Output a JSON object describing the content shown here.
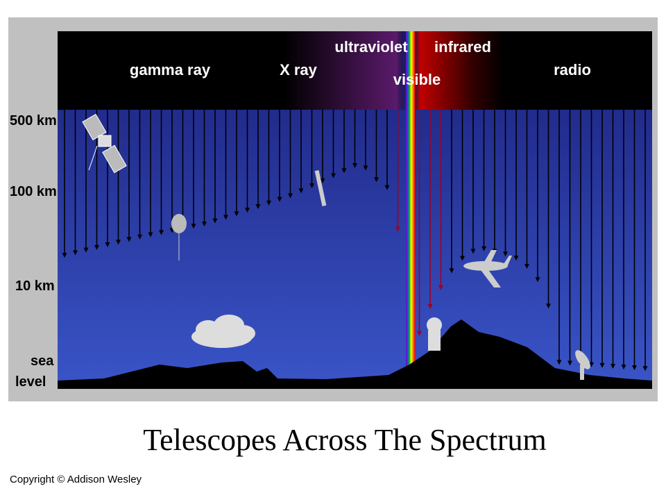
{
  "bands": [
    "gamma ray",
    "X ray",
    "ultraviolet",
    "visible",
    "infrared",
    "radio"
  ],
  "altitudes": [
    "500 km",
    "100 km",
    "10 km",
    "sea",
    "level"
  ],
  "title": "Telescopes Across The Spectrum",
  "copyright": "Copyright © Addison Wesley"
}
